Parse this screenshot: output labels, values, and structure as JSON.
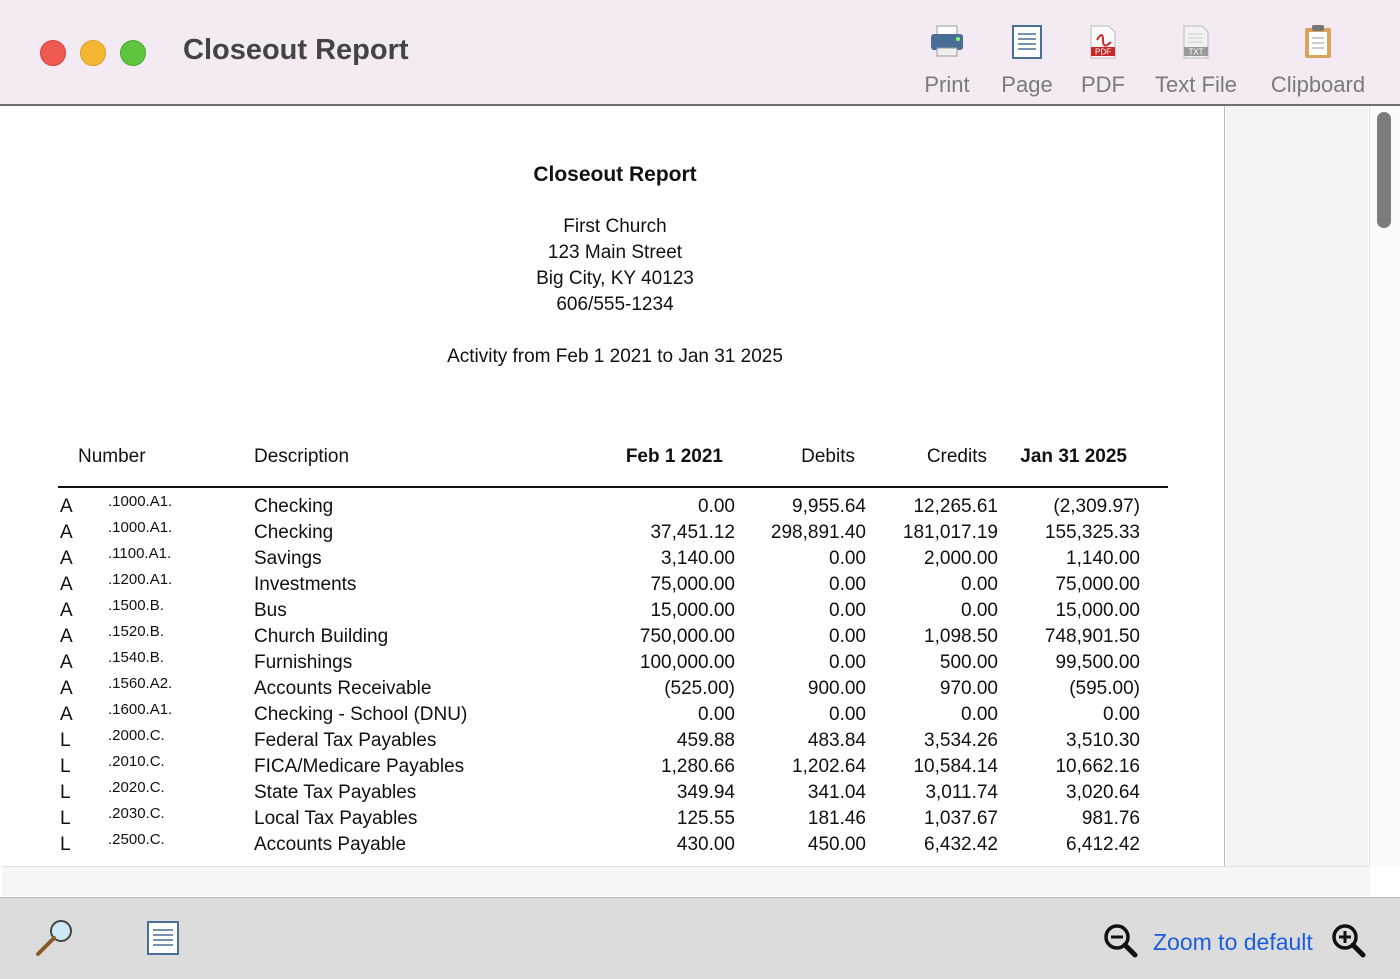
{
  "window": {
    "title": "Closeout Report",
    "toolbar": [
      "Print",
      "Page",
      "PDF",
      "Text File",
      "Clipboard"
    ],
    "icon_texts": [
      "PDF",
      "TXT"
    ]
  },
  "report": {
    "title": "Closeout Report",
    "address": [
      "First Church",
      "123 Main Street",
      "Big City, KY  40123",
      "606/555-1234"
    ],
    "period": "Activity from Feb 1 2021 to Jan 31 2025",
    "columns": [
      "Number",
      "Description",
      "Feb 1 2021",
      "Debits",
      "Credits",
      "Jan 31 2025"
    ],
    "rows": [
      [
        "A",
        ".1000.A1.",
        "Checking",
        "0.00",
        "9,955.64",
        "12,265.61",
        "(2,309.97)"
      ],
      [
        "A",
        ".1000.A1.",
        "Checking",
        "37,451.12",
        "298,891.40",
        "181,017.19",
        "155,325.33"
      ],
      [
        "A",
        ".1100.A1.",
        "Savings",
        "3,140.00",
        "0.00",
        "2,000.00",
        "1,140.00"
      ],
      [
        "A",
        ".1200.A1.",
        "Investments",
        "75,000.00",
        "0.00",
        "0.00",
        "75,000.00"
      ],
      [
        "A",
        ".1500.B.",
        "Bus",
        "15,000.00",
        "0.00",
        "0.00",
        "15,000.00"
      ],
      [
        "A",
        ".1520.B.",
        "Church Building",
        "750,000.00",
        "0.00",
        "1,098.50",
        "748,901.50"
      ],
      [
        "A",
        ".1540.B.",
        "Furnishings",
        "100,000.00",
        "0.00",
        "500.00",
        "99,500.00"
      ],
      [
        "A",
        ".1560.A2.",
        "Accounts Receivable",
        "(525.00)",
        "900.00",
        "970.00",
        "(595.00)"
      ],
      [
        "A",
        ".1600.A1.",
        "Checking - School (DNU)",
        "0.00",
        "0.00",
        "0.00",
        "0.00"
      ],
      [
        "L",
        ".2000.C.",
        "Federal Tax Payables",
        "459.88",
        "483.84",
        "3,534.26",
        "3,510.30"
      ],
      [
        "L",
        ".2010.C.",
        "FICA/Medicare Payables",
        "1,280.66",
        "1,202.64",
        "10,584.14",
        "10,662.16"
      ],
      [
        "L",
        ".2020.C.",
        "State Tax Payables",
        "349.94",
        "341.04",
        "3,011.74",
        "3,020.64"
      ],
      [
        "L",
        ".2030.C.",
        "Local Tax Payables",
        "125.55",
        "181.46",
        "1,037.67",
        "981.76"
      ],
      [
        "L",
        ".2500.C.",
        "Accounts Payable",
        "430.00",
        "450.00",
        "6,432.42",
        "6,412.42"
      ]
    ]
  },
  "footer": {
    "zoom": "Zoom to default"
  }
}
